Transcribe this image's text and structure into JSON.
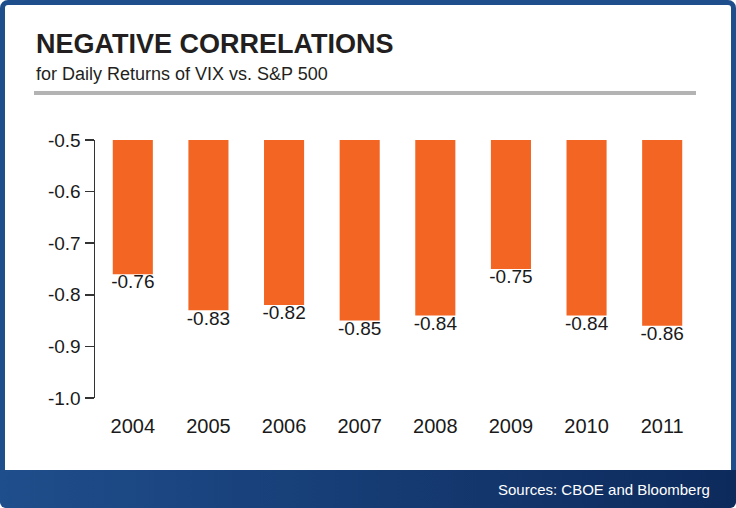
{
  "chart_data": {
    "type": "bar",
    "title": "NEGATIVE CORRELATIONS",
    "subtitle": "for Daily Returns of VIX vs. S&P 500",
    "categories": [
      "2004",
      "2005",
      "2006",
      "2007",
      "2008",
      "2009",
      "2010",
      "2011"
    ],
    "values": [
      -0.76,
      -0.83,
      -0.82,
      -0.85,
      -0.84,
      -0.75,
      -0.84,
      -0.86
    ],
    "color": "#f26522",
    "ylim": [
      -1,
      -0.5
    ],
    "yticks": [
      -0.5,
      -0.6,
      -0.7,
      -0.8,
      -0.9,
      {
        "value": -1,
        "label": "-1.0"
      }
    ],
    "grid": false,
    "data_labels": true,
    "annotations": [
      "Sources: CBOE and Bloomberg"
    ]
  }
}
